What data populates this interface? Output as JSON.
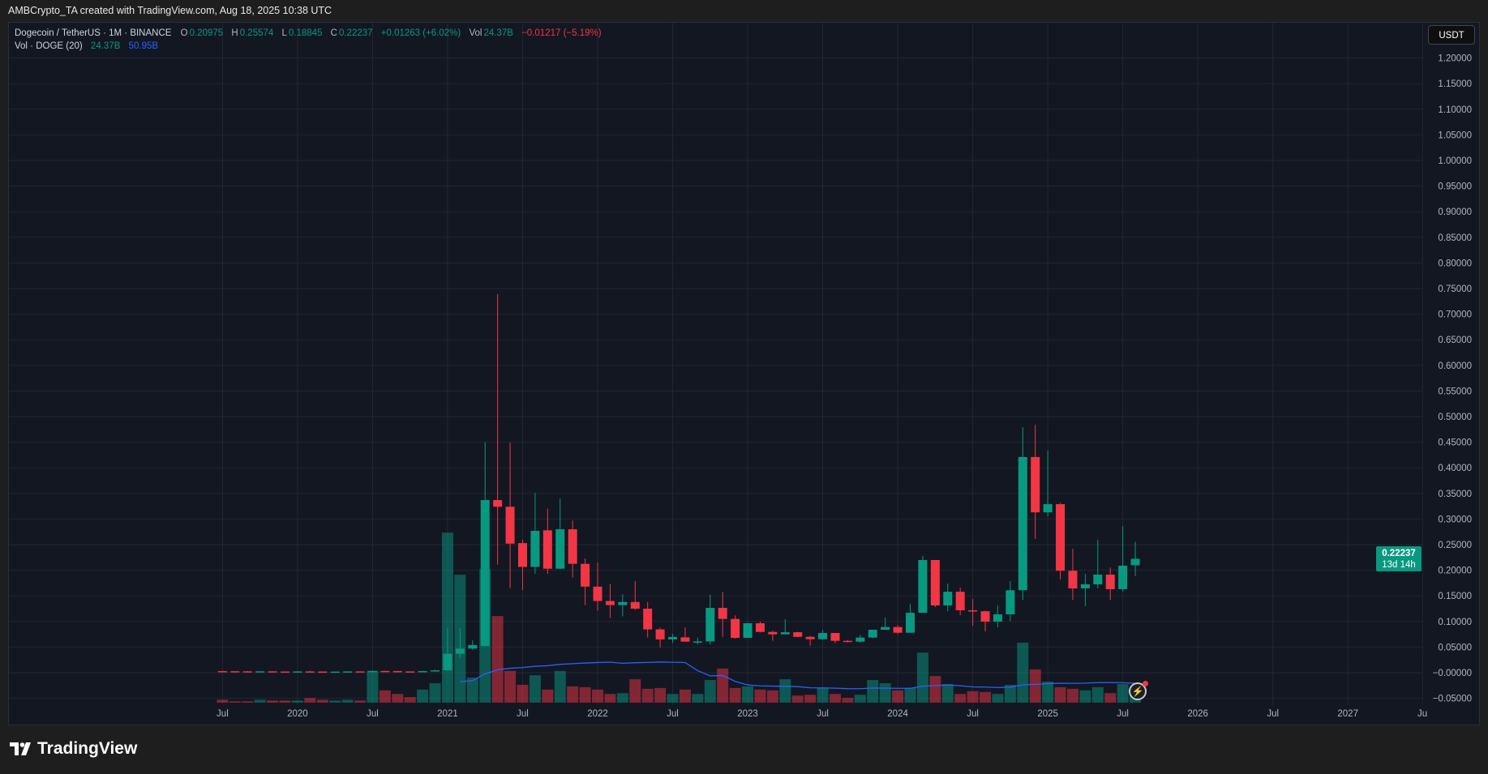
{
  "header": {
    "text": "AMBCrypto_TA created with TradingView.com, Aug 18, 2025 10:38 UTC"
  },
  "legend": {
    "symbol": "Dogecoin / TetherUS · 1M · BINANCE",
    "o_label": "O",
    "o": "0.20975",
    "h_label": "H",
    "h": "0.25574",
    "l_label": "L",
    "l": "0.18845",
    "c_label": "C",
    "c": "0.22237",
    "change": "+0.01263 (+6.02%)",
    "vol_label": "Vol",
    "vol": "24.37B",
    "vol_change": "−0.01217 (−5.19%)",
    "vol_study": "Vol · DOGE (20)",
    "vol_value": "24.37B",
    "vol_ma": "50.95B"
  },
  "currency": "USDT",
  "price_tag": {
    "value": "0.22237",
    "countdown": "13d 14h"
  },
  "brand": "TradingView",
  "colors": {
    "up": "#089981",
    "down": "#f23645",
    "ma": "#2962ff",
    "background": "#131722"
  },
  "icons": {
    "alert": "lightning-icon",
    "logo": "tradingview-logo-icon"
  },
  "chart_data": {
    "type": "candlestick",
    "interval": "1M",
    "ylim": [
      -0.05,
      1.2
    ],
    "y_ticks": [
      "1.20000",
      "1.15000",
      "1.10000",
      "1.05000",
      "1.00000",
      "0.95000",
      "0.90000",
      "0.85000",
      "0.80000",
      "0.75000",
      "0.70000",
      "0.65000",
      "0.60000",
      "0.55000",
      "0.50000",
      "0.45000",
      "0.40000",
      "0.35000",
      "0.30000",
      "0.25000",
      "0.20000",
      "0.15000",
      "0.10000",
      "0.05000",
      "−0.00000",
      "−0.05000"
    ],
    "x_ticks": [
      "Jul",
      "2020",
      "Jul",
      "2021",
      "Jul",
      "2022",
      "Jul",
      "2023",
      "Jul",
      "2024",
      "Jul",
      "2025",
      "Jul",
      "2026",
      "Jul",
      "2027",
      "Jul"
    ],
    "grid": true,
    "volume_ma_period": 20,
    "candles": [
      {
        "t": "2019-07",
        "o": 0.0031,
        "h": 0.0036,
        "l": 0.0025,
        "c": 0.0029,
        "v": 7.5
      },
      {
        "t": "2019-08",
        "o": 0.0029,
        "h": 0.003,
        "l": 0.0024,
        "c": 0.0027,
        "v": 3.5
      },
      {
        "t": "2019-09",
        "o": 0.0027,
        "h": 0.0031,
        "l": 0.002,
        "c": 0.0024,
        "v": 3.5
      },
      {
        "t": "2019-10",
        "o": 0.0024,
        "h": 0.0029,
        "l": 0.0022,
        "c": 0.0027,
        "v": 7.5
      },
      {
        "t": "2019-11",
        "o": 0.0027,
        "h": 0.0029,
        "l": 0.0022,
        "c": 0.0023,
        "v": 5.5
      },
      {
        "t": "2019-12",
        "o": 0.0023,
        "h": 0.0024,
        "l": 0.0019,
        "c": 0.002,
        "v": 5.5
      },
      {
        "t": "2020-01",
        "o": 0.002,
        "h": 0.003,
        "l": 0.002,
        "c": 0.0025,
        "v": 5.5
      },
      {
        "t": "2020-02",
        "o": 0.0025,
        "h": 0.0035,
        "l": 0.0023,
        "c": 0.0023,
        "v": 11.6
      },
      {
        "t": "2020-03",
        "o": 0.0023,
        "h": 0.0024,
        "l": 0.0012,
        "c": 0.0018,
        "v": 7.5
      },
      {
        "t": "2020-04",
        "o": 0.0018,
        "h": 0.0022,
        "l": 0.0017,
        "c": 0.0021,
        "v": 5.5
      },
      {
        "t": "2020-05",
        "o": 0.0021,
        "h": 0.0027,
        "l": 0.002,
        "c": 0.0025,
        "v": 7.5
      },
      {
        "t": "2020-06",
        "o": 0.0025,
        "h": 0.0028,
        "l": 0.0024,
        "c": 0.0024,
        "v": 5.5
      },
      {
        "t": "2020-07",
        "o": 0.0024,
        "h": 0.0041,
        "l": 0.0023,
        "c": 0.0034,
        "v": 80
      },
      {
        "t": "2020-08",
        "o": 0.0034,
        "h": 0.0036,
        "l": 0.0031,
        "c": 0.0032,
        "v": 31
      },
      {
        "t": "2020-09",
        "o": 0.0032,
        "h": 0.0034,
        "l": 0.0024,
        "c": 0.0025,
        "v": 22
      },
      {
        "t": "2020-10",
        "o": 0.0025,
        "h": 0.0027,
        "l": 0.0024,
        "c": 0.0024,
        "v": 14
      },
      {
        "t": "2020-11",
        "o": 0.0024,
        "h": 0.0037,
        "l": 0.0024,
        "c": 0.0032,
        "v": 33
      },
      {
        "t": "2020-12",
        "o": 0.0032,
        "h": 0.0059,
        "l": 0.0031,
        "c": 0.0047,
        "v": 49
      },
      {
        "t": "2021-01",
        "o": 0.0047,
        "h": 0.087,
        "l": 0.0047,
        "c": 0.037,
        "v": 428
      },
      {
        "t": "2021-02",
        "o": 0.037,
        "h": 0.087,
        "l": 0.029,
        "c": 0.047,
        "v": 322
      },
      {
        "t": "2021-03",
        "o": 0.047,
        "h": 0.063,
        "l": 0.045,
        "c": 0.054,
        "v": 63
      },
      {
        "t": "2021-04",
        "o": 0.052,
        "h": 0.45,
        "l": 0.051,
        "c": 0.337,
        "v": 337
      },
      {
        "t": "2021-05",
        "o": 0.337,
        "h": 0.739,
        "l": 0.211,
        "c": 0.324,
        "v": 218
      },
      {
        "t": "2021-06",
        "o": 0.324,
        "h": 0.449,
        "l": 0.165,
        "c": 0.252,
        "v": 80
      },
      {
        "t": "2021-07",
        "o": 0.253,
        "h": 0.26,
        "l": 0.161,
        "c": 0.2065,
        "v": 45
      },
      {
        "t": "2021-08",
        "o": 0.2065,
        "h": 0.351,
        "l": 0.193,
        "c": 0.277,
        "v": 69
      },
      {
        "t": "2021-09",
        "o": 0.278,
        "h": 0.32,
        "l": 0.193,
        "c": 0.203,
        "v": 33
      },
      {
        "t": "2021-10",
        "o": 0.203,
        "h": 0.34,
        "l": 0.202,
        "c": 0.28,
        "v": 80
      },
      {
        "t": "2021-11",
        "o": 0.28,
        "h": 0.297,
        "l": 0.186,
        "c": 0.2125,
        "v": 41
      },
      {
        "t": "2021-12",
        "o": 0.2125,
        "h": 0.223,
        "l": 0.132,
        "c": 0.168,
        "v": 39
      },
      {
        "t": "2022-01",
        "o": 0.168,
        "h": 0.215,
        "l": 0.121,
        "c": 0.14,
        "v": 33
      },
      {
        "t": "2022-02",
        "o": 0.14,
        "h": 0.173,
        "l": 0.107,
        "c": 0.132,
        "v": 22
      },
      {
        "t": "2022-03",
        "o": 0.132,
        "h": 0.153,
        "l": 0.11,
        "c": 0.138,
        "v": 24
      },
      {
        "t": "2022-04",
        "o": 0.138,
        "h": 0.179,
        "l": 0.122,
        "c": 0.125,
        "v": 59
      },
      {
        "t": "2022-05",
        "o": 0.125,
        "h": 0.138,
        "l": 0.0687,
        "c": 0.0845,
        "v": 35
      },
      {
        "t": "2022-06",
        "o": 0.0845,
        "h": 0.088,
        "l": 0.0495,
        "c": 0.065,
        "v": 37
      },
      {
        "t": "2022-07",
        "o": 0.065,
        "h": 0.076,
        "l": 0.058,
        "c": 0.0697,
        "v": 22
      },
      {
        "t": "2022-08",
        "o": 0.069,
        "h": 0.0886,
        "l": 0.0606,
        "c": 0.0606,
        "v": 33
      },
      {
        "t": "2022-09",
        "o": 0.0606,
        "h": 0.0685,
        "l": 0.0553,
        "c": 0.061,
        "v": 22
      },
      {
        "t": "2022-10",
        "o": 0.061,
        "h": 0.152,
        "l": 0.0553,
        "c": 0.1266,
        "v": 57
      },
      {
        "t": "2022-11",
        "o": 0.1266,
        "h": 0.158,
        "l": 0.07,
        "c": 0.105,
        "v": 86
      },
      {
        "t": "2022-12",
        "o": 0.105,
        "h": 0.112,
        "l": 0.0665,
        "c": 0.068,
        "v": 37
      },
      {
        "t": "2023-01",
        "o": 0.068,
        "h": 0.0975,
        "l": 0.068,
        "c": 0.0965,
        "v": 41
      },
      {
        "t": "2023-02",
        "o": 0.0965,
        "h": 0.1,
        "l": 0.0785,
        "c": 0.0796,
        "v": 33
      },
      {
        "t": "2023-03",
        "o": 0.0796,
        "h": 0.082,
        "l": 0.0622,
        "c": 0.0749,
        "v": 31
      },
      {
        "t": "2023-04",
        "o": 0.0749,
        "h": 0.1044,
        "l": 0.0749,
        "c": 0.079,
        "v": 59
      },
      {
        "t": "2023-05",
        "o": 0.079,
        "h": 0.08,
        "l": 0.069,
        "c": 0.07,
        "v": 18
      },
      {
        "t": "2023-06",
        "o": 0.07,
        "h": 0.072,
        "l": 0.0527,
        "c": 0.0654,
        "v": 20
      },
      {
        "t": "2023-07",
        "o": 0.0654,
        "h": 0.0832,
        "l": 0.064,
        "c": 0.0775,
        "v": 37
      },
      {
        "t": "2023-08",
        "o": 0.0775,
        "h": 0.0775,
        "l": 0.0575,
        "c": 0.0622,
        "v": 22
      },
      {
        "t": "2023-09",
        "o": 0.0622,
        "h": 0.064,
        "l": 0.059,
        "c": 0.0606,
        "v": 12
      },
      {
        "t": "2023-10",
        "o": 0.0606,
        "h": 0.0738,
        "l": 0.0585,
        "c": 0.0686,
        "v": 20
      },
      {
        "t": "2023-11",
        "o": 0.0686,
        "h": 0.0839,
        "l": 0.0675,
        "c": 0.0839,
        "v": 57
      },
      {
        "t": "2023-12",
        "o": 0.0839,
        "h": 0.1076,
        "l": 0.0839,
        "c": 0.0891,
        "v": 49
      },
      {
        "t": "2024-01",
        "o": 0.0891,
        "h": 0.0934,
        "l": 0.0752,
        "c": 0.078,
        "v": 31
      },
      {
        "t": "2024-02",
        "o": 0.078,
        "h": 0.1345,
        "l": 0.078,
        "c": 0.117,
        "v": 37
      },
      {
        "t": "2024-03",
        "o": 0.117,
        "h": 0.228,
        "l": 0.117,
        "c": 0.22,
        "v": 126
      },
      {
        "t": "2024-04",
        "o": 0.22,
        "h": 0.22,
        "l": 0.128,
        "c": 0.1313,
        "v": 67
      },
      {
        "t": "2024-05",
        "o": 0.1313,
        "h": 0.174,
        "l": 0.12,
        "c": 0.158,
        "v": 47
      },
      {
        "t": "2024-06",
        "o": 0.158,
        "h": 0.166,
        "l": 0.112,
        "c": 0.1218,
        "v": 22
      },
      {
        "t": "2024-07",
        "o": 0.1218,
        "h": 0.144,
        "l": 0.0918,
        "c": 0.12,
        "v": 29
      },
      {
        "t": "2024-08",
        "o": 0.12,
        "h": 0.121,
        "l": 0.0807,
        "c": 0.0997,
        "v": 27
      },
      {
        "t": "2024-09",
        "o": 0.0997,
        "h": 0.131,
        "l": 0.0886,
        "c": 0.114,
        "v": 22
      },
      {
        "t": "2024-10",
        "o": 0.114,
        "h": 0.179,
        "l": 0.101,
        "c": 0.161,
        "v": 45
      },
      {
        "t": "2024-11",
        "o": 0.161,
        "h": 0.479,
        "l": 0.142,
        "c": 0.421,
        "v": 151
      },
      {
        "t": "2024-12",
        "o": 0.421,
        "h": 0.484,
        "l": 0.261,
        "c": 0.313,
        "v": 84
      },
      {
        "t": "2025-01",
        "o": 0.313,
        "h": 0.4335,
        "l": 0.305,
        "c": 0.329,
        "v": 53
      },
      {
        "t": "2025-02",
        "o": 0.329,
        "h": 0.332,
        "l": 0.182,
        "c": 0.199,
        "v": 39
      },
      {
        "t": "2025-03",
        "o": 0.199,
        "h": 0.242,
        "l": 0.142,
        "c": 0.1646,
        "v": 35
      },
      {
        "t": "2025-04",
        "o": 0.1646,
        "h": 0.193,
        "l": 0.1297,
        "c": 0.1725,
        "v": 31
      },
      {
        "t": "2025-05",
        "o": 0.1725,
        "h": 0.2595,
        "l": 0.1646,
        "c": 0.1915,
        "v": 39
      },
      {
        "t": "2025-06",
        "o": 0.1915,
        "h": 0.2057,
        "l": 0.142,
        "c": 0.163,
        "v": 24
      },
      {
        "t": "2025-07",
        "o": 0.163,
        "h": 0.286,
        "l": 0.158,
        "c": 0.2089,
        "v": 47
      },
      {
        "t": "2025-08",
        "o": 0.20975,
        "h": 0.25574,
        "l": 0.18845,
        "c": 0.22237,
        "v": 24.37
      }
    ]
  }
}
